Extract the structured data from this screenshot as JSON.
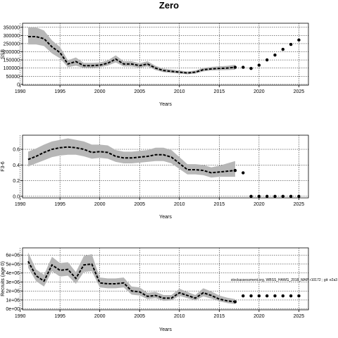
{
  "page": {
    "title": "Zero"
  },
  "chart_data": [
    {
      "type": "line",
      "title": "",
      "xlabel": "Years",
      "ylabel": "SSB",
      "xlim": [
        1990.3,
        2026.2
      ],
      "ylim": [
        -5000,
        375000
      ],
      "x_ticks": [
        1990,
        1995,
        2000,
        2005,
        2010,
        2015,
        2020,
        2025
      ],
      "x_tick_labels": [
        "1990",
        "1995",
        "2000",
        "2005",
        "2010",
        "2015",
        "2020",
        "2025"
      ],
      "y_ticks": [
        0,
        50000,
        100000,
        150000,
        200000,
        250000,
        300000,
        350000
      ],
      "y_tick_labels": [
        "0",
        "50000",
        "100000",
        "150000",
        "200000",
        "250000",
        "300000",
        "350000"
      ],
      "grid": true,
      "series": [
        {
          "kind": "estimate",
          "x": [
            1991,
            1992,
            1993,
            1994,
            1995,
            1996,
            1997,
            1998,
            1999,
            2000,
            2001,
            2002,
            2003,
            2004,
            2005,
            2006,
            2007,
            2008,
            2009,
            2010,
            2011,
            2012,
            2013,
            2014,
            2015,
            2016,
            2017
          ],
          "values": [
            293000,
            293000,
            280000,
            230000,
            195000,
            125000,
            140000,
            115000,
            115000,
            118000,
            130000,
            155000,
            125000,
            125000,
            115000,
            125000,
            100000,
            85000,
            80000,
            75000,
            70000,
            75000,
            90000,
            95000,
            98000,
            100000,
            105000
          ],
          "lower": [
            245000,
            245000,
            235000,
            190000,
            160000,
            105000,
            115000,
            100000,
            100000,
            105000,
            115000,
            135000,
            110000,
            110000,
            102000,
            110000,
            88000,
            75000,
            70000,
            66000,
            62000,
            66000,
            80000,
            85000,
            87000,
            88000,
            90000
          ],
          "upper": [
            350000,
            350000,
            330000,
            270000,
            230000,
            148000,
            165000,
            132000,
            132000,
            134000,
            147000,
            178000,
            142000,
            142000,
            130000,
            142000,
            114000,
            97000,
            91000,
            85000,
            79000,
            85000,
            102000,
            107000,
            111000,
            114000,
            120000
          ]
        },
        {
          "kind": "projection",
          "x": [
            2017,
            2018,
            2019,
            2020,
            2021,
            2022,
            2023,
            2024,
            2025
          ],
          "values": [
            105000,
            105000,
            98000,
            118000,
            150000,
            180000,
            215000,
            245000,
            272000
          ]
        }
      ]
    },
    {
      "type": "line",
      "title": "",
      "xlabel": "Years",
      "ylabel": "F3-6",
      "xlim": [
        1990.3,
        2026.2
      ],
      "ylim": [
        -0.02,
        0.78
      ],
      "x_ticks": [
        1990,
        1995,
        2000,
        2005,
        2010,
        2015,
        2020,
        2025
      ],
      "x_tick_labels": [
        "1990",
        "1995",
        "2000",
        "2005",
        "2010",
        "2015",
        "2020",
        "2025"
      ],
      "y_ticks": [
        0.0,
        0.2,
        0.4,
        0.6
      ],
      "y_tick_labels": [
        "0.0",
        "0.2",
        "0.4",
        "0.6"
      ],
      "grid": true,
      "series": [
        {
          "kind": "estimate",
          "x": [
            1991,
            1992,
            1993,
            1994,
            1995,
            1996,
            1997,
            1998,
            1999,
            2000,
            2001,
            2002,
            2003,
            2004,
            2005,
            2006,
            2007,
            2008,
            2009,
            2010,
            2011,
            2012,
            2013,
            2014,
            2015,
            2016,
            2017
          ],
          "values": [
            0.47,
            0.51,
            0.56,
            0.6,
            0.62,
            0.63,
            0.62,
            0.6,
            0.56,
            0.57,
            0.56,
            0.51,
            0.49,
            0.49,
            0.5,
            0.51,
            0.53,
            0.53,
            0.5,
            0.42,
            0.34,
            0.34,
            0.33,
            0.3,
            0.31,
            0.32,
            0.33
          ],
          "lower": [
            0.38,
            0.42,
            0.46,
            0.5,
            0.52,
            0.53,
            0.53,
            0.51,
            0.48,
            0.49,
            0.48,
            0.44,
            0.42,
            0.42,
            0.43,
            0.44,
            0.45,
            0.45,
            0.42,
            0.35,
            0.28,
            0.28,
            0.27,
            0.24,
            0.25,
            0.25,
            0.25
          ],
          "upper": [
            0.57,
            0.61,
            0.66,
            0.7,
            0.72,
            0.74,
            0.72,
            0.7,
            0.66,
            0.66,
            0.65,
            0.59,
            0.57,
            0.57,
            0.58,
            0.59,
            0.62,
            0.62,
            0.59,
            0.5,
            0.41,
            0.41,
            0.4,
            0.37,
            0.39,
            0.42,
            0.45
          ]
        },
        {
          "kind": "projection",
          "x": [
            2017,
            2018,
            2019,
            2020,
            2021,
            2022,
            2023,
            2024,
            2025
          ],
          "values": [
            0.33,
            0.3,
            0.0,
            0.0,
            0.0,
            0.0,
            0.0,
            0.0,
            0.0
          ]
        }
      ]
    },
    {
      "type": "line",
      "title": "",
      "xlabel": "Years",
      "ylabel": "Recruits (age 0)",
      "xlim": [
        1990.3,
        2026.2
      ],
      "ylim": [
        -100000,
        6800000
      ],
      "x_ticks": [
        1990,
        1995,
        2000,
        2005,
        2010,
        2015,
        2020,
        2025
      ],
      "x_tick_labels": [
        "1990",
        "1995",
        "2000",
        "2005",
        "2010",
        "2015",
        "2020",
        "2025"
      ],
      "y_ticks": [
        0,
        1000000,
        2000000,
        3000000,
        4000000,
        5000000,
        6000000
      ],
      "y_tick_labels": [
        "0e+00",
        "1e+06",
        "2e+06",
        "3e+06",
        "4e+06",
        "5e+06",
        "6e+06"
      ],
      "grid": true,
      "annotation": "stockassessment.org, WBSS_HAWG_2018_MAP, r10172 ; git: e2a3",
      "series": [
        {
          "kind": "estimate",
          "x": [
            1991,
            1992,
            1993,
            1994,
            1995,
            1996,
            1997,
            1998,
            1999,
            2000,
            2001,
            2002,
            2003,
            2004,
            2005,
            2006,
            2007,
            2008,
            2009,
            2010,
            2011,
            2012,
            2013,
            2014,
            2015,
            2016,
            2017
          ],
          "values": [
            5300000,
            3700000,
            3100000,
            4900000,
            4300000,
            4400000,
            3400000,
            4900000,
            5000000,
            2900000,
            2800000,
            2800000,
            2900000,
            2000000,
            1900000,
            1400000,
            1500000,
            1200000,
            1200000,
            1800000,
            1500000,
            1200000,
            1800000,
            1500000,
            1100000,
            900000,
            800000
          ],
          "lower": [
            4600000,
            3100000,
            2500000,
            4200000,
            3600000,
            3700000,
            2800000,
            4100000,
            4200000,
            2400000,
            2300000,
            2300000,
            2400000,
            1600000,
            1500000,
            1100000,
            1200000,
            900000,
            950000,
            1450000,
            1200000,
            950000,
            1400000,
            1150000,
            850000,
            650000,
            550000
          ],
          "upper": [
            6300000,
            4400000,
            3800000,
            5800000,
            5100000,
            5200000,
            4100000,
            5900000,
            6100000,
            3500000,
            3400000,
            3400000,
            3500000,
            2500000,
            2400000,
            1800000,
            1900000,
            1550000,
            1550000,
            2250000,
            1900000,
            1550000,
            2300000,
            1950000,
            1500000,
            1250000,
            1100000
          ]
        },
        {
          "kind": "projection",
          "x": [
            2017,
            2018,
            2019,
            2020,
            2021,
            2022,
            2023,
            2024,
            2025
          ],
          "values": [
            800000,
            1450000,
            1450000,
            1450000,
            1450000,
            1450000,
            1450000,
            1450000,
            1450000
          ]
        }
      ]
    }
  ]
}
